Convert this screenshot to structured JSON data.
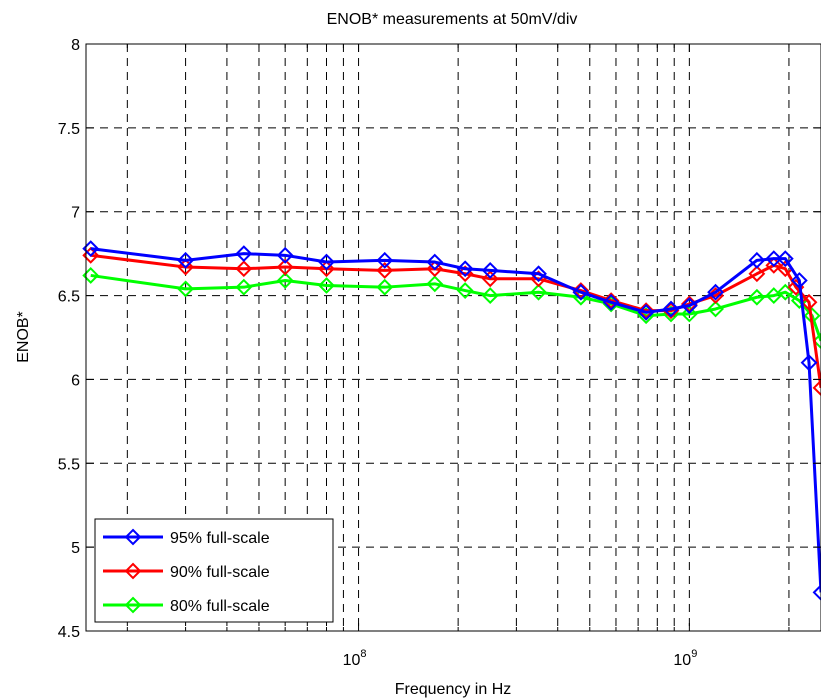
{
  "chart_data": {
    "type": "line",
    "title": "ENOB* measurements at 50mV/div",
    "xlabel": "Frequency in Hz",
    "ylabel": "ENOB*",
    "xscale": "log",
    "xlim": [
      15000000,
      2500000000
    ],
    "ylim": [
      4.5,
      8
    ],
    "yticks": [
      "4.5",
      "5",
      "5.5",
      "6",
      "6.5",
      "7",
      "7.5",
      "8"
    ],
    "xticks": [
      {
        "value": 100000000,
        "base": "10",
        "exp": "8"
      },
      {
        "value": 1000000000,
        "base": "10",
        "exp": "9"
      }
    ],
    "grid": true,
    "legend_position": "lower-left",
    "series": [
      {
        "name": "95% full-scale",
        "color": "#0000ff",
        "x": [
          15500000,
          30000000,
          45000000,
          60000000,
          80000000,
          120000000,
          170000000,
          210000000,
          250000000,
          350000000,
          470000000,
          580000000,
          740000000,
          880000000,
          1000000000,
          1200000000,
          1600000000,
          1800000000,
          1950000000,
          2150000000,
          2300000000,
          2500000000
        ],
        "y": [
          6.78,
          6.71,
          6.75,
          6.74,
          6.7,
          6.71,
          6.7,
          6.66,
          6.65,
          6.63,
          6.52,
          6.46,
          6.4,
          6.42,
          6.44,
          6.52,
          6.71,
          6.72,
          6.72,
          6.59,
          6.1,
          4.73
        ]
      },
      {
        "name": "90% full-scale",
        "color": "#ff0000",
        "x": [
          15500000,
          30000000,
          45000000,
          60000000,
          80000000,
          120000000,
          170000000,
          210000000,
          250000000,
          350000000,
          470000000,
          580000000,
          740000000,
          880000000,
          1000000000,
          1200000000,
          1600000000,
          1800000000,
          1950000000,
          2100000000,
          2300000000,
          2500000000
        ],
        "y": [
          6.74,
          6.67,
          6.66,
          6.67,
          6.66,
          6.65,
          6.66,
          6.63,
          6.6,
          6.6,
          6.53,
          6.47,
          6.41,
          6.41,
          6.45,
          6.5,
          6.63,
          6.68,
          6.66,
          6.55,
          6.46,
          5.95
        ]
      },
      {
        "name": "80% full-scale",
        "color": "#00ff00",
        "x": [
          15500000,
          30000000,
          45000000,
          60000000,
          80000000,
          120000000,
          170000000,
          210000000,
          250000000,
          350000000,
          470000000,
          580000000,
          740000000,
          880000000,
          1000000000,
          1200000000,
          1600000000,
          1800000000,
          1950000000,
          2150000000,
          2350000000,
          2500000000
        ],
        "y": [
          6.62,
          6.54,
          6.55,
          6.59,
          6.56,
          6.55,
          6.57,
          6.53,
          6.5,
          6.52,
          6.49,
          6.45,
          6.38,
          6.39,
          6.39,
          6.42,
          6.49,
          6.5,
          6.52,
          6.47,
          6.38,
          6.23
        ]
      }
    ]
  }
}
